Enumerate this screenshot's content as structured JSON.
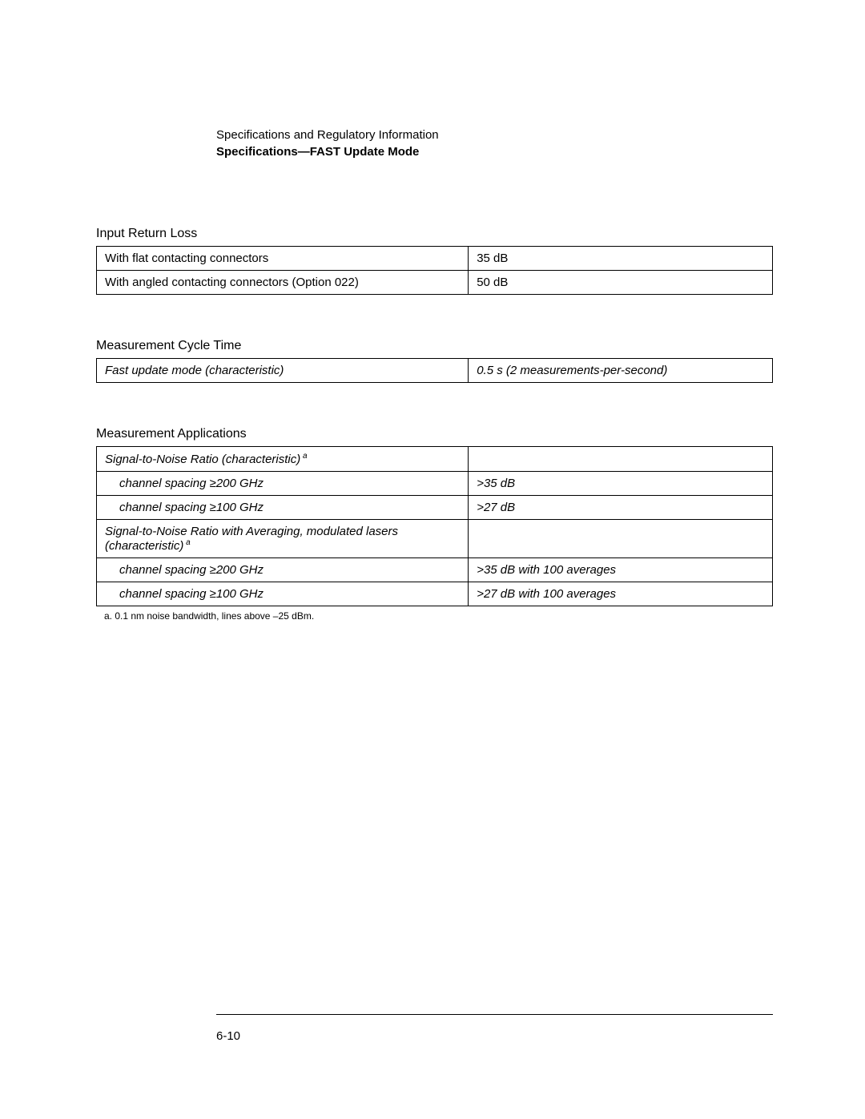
{
  "header": {
    "line1": "Specifications and Regulatory Information",
    "line2": "Specifications—FAST Update Mode"
  },
  "sections": {
    "input_return_loss": {
      "title": "Input Return Loss",
      "rows": [
        {
          "label": "With flat contacting connectors",
          "value": "35 dB"
        },
        {
          "label": "With angled contacting connectors (Option 022)",
          "value": "50 dB"
        }
      ]
    },
    "measurement_cycle_time": {
      "title": "Measurement Cycle Time",
      "rows": [
        {
          "label": "Fast update mode (characteristic)",
          "value": "0.5 s (2 measurements-per-second)"
        }
      ]
    },
    "measurement_applications": {
      "title": "Measurement Applications",
      "group1_header": "Signal-to-Noise Ratio (characteristic",
      "group1_sup": "a",
      "rows1": [
        {
          "label": "channel spacing ≥200 GHz",
          "value": ">35 dB"
        },
        {
          "label": "channel spacing ≥100 GHz",
          "value": ">27 dB"
        }
      ],
      "group2_header": "Signal-to-Noise Ratio with Averaging, modulated lasers (characteristic)",
      "group2_sup": "a",
      "rows2": [
        {
          "label": "channel spacing ≥200 GHz",
          "value": ">35 dB with 100 averages"
        },
        {
          "label": "channel spacing ≥100 GHz",
          "value": ">27 dB with 100 averages"
        }
      ],
      "footnote": "a.  0.1 nm noise bandwidth, lines above –25 dBm."
    }
  },
  "footer": {
    "page_number": "6-10"
  }
}
